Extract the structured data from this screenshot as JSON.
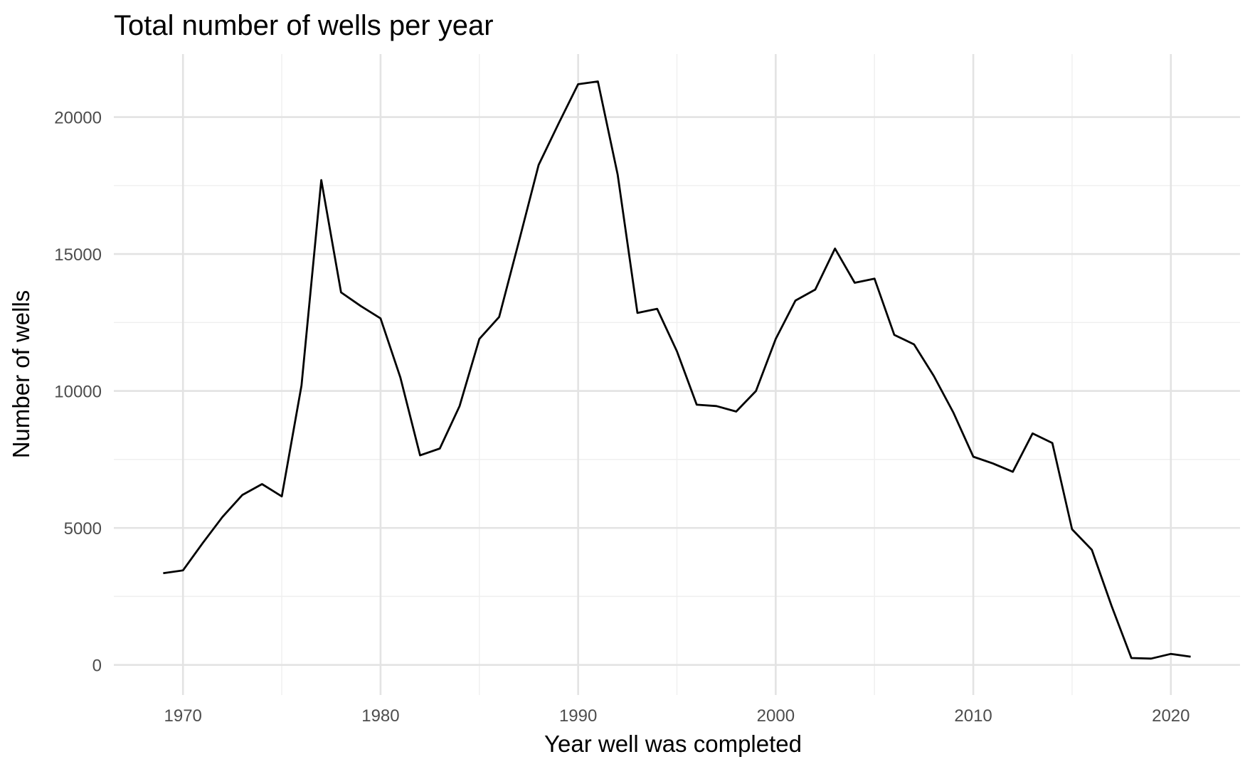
{
  "chart_data": {
    "type": "line",
    "title": "Total number of wells per year",
    "xlabel": "Year well was completed",
    "ylabel": "Number of wells",
    "xlim": [
      1966.5,
      2023.5
    ],
    "ylim": [
      -1100,
      22300
    ],
    "x_major_ticks": [
      1970,
      1980,
      1990,
      2000,
      2010,
      2020
    ],
    "x_tick_labels": [
      "1970",
      "1980",
      "1990",
      "2000",
      "2010",
      "2020"
    ],
    "x_minor_ticks": [
      1975,
      1985,
      1995,
      2005,
      2015
    ],
    "y_major_ticks": [
      0,
      5000,
      10000,
      15000,
      20000
    ],
    "y_tick_labels": [
      "0",
      "5000",
      "10000",
      "15000",
      "20000"
    ],
    "y_minor_ticks": [
      2500,
      7500,
      12500,
      17500
    ],
    "grid": true,
    "legend": "none",
    "colors": {
      "line": "#000000",
      "grid_major": "#e3e3e3",
      "grid_minor": "#efefef",
      "tick_text": "#4d4d4d"
    },
    "x": [
      1969,
      1970,
      1971,
      1972,
      1973,
      1974,
      1975,
      1976,
      1977,
      1978,
      1979,
      1980,
      1981,
      1982,
      1983,
      1984,
      1985,
      1986,
      1987,
      1988,
      1989,
      1990,
      1991,
      1992,
      1993,
      1994,
      1995,
      1996,
      1997,
      1998,
      1999,
      2000,
      2001,
      2002,
      2003,
      2004,
      2005,
      2006,
      2007,
      2008,
      2009,
      2010,
      2011,
      2012,
      2013,
      2014,
      2015,
      2016,
      2017,
      2018,
      2019,
      2020,
      2021
    ],
    "series": [
      {
        "values": [
          3350,
          3450,
          4450,
          5400,
          6200,
          6600,
          6150,
          10200,
          17700,
          13600,
          13100,
          12650,
          10500,
          7650,
          7900,
          9450,
          11900,
          12700,
          15450,
          18250,
          19750,
          21200,
          21300,
          17900,
          12850,
          13000,
          11450,
          9500,
          9450,
          9250,
          10000,
          11900,
          13300,
          13700,
          15200,
          13950,
          14100,
          12050,
          11700,
          10550,
          9200,
          7600,
          7350,
          7050,
          8450,
          8100,
          4950,
          4200,
          2150,
          250,
          230,
          400,
          300
        ]
      }
    ]
  }
}
